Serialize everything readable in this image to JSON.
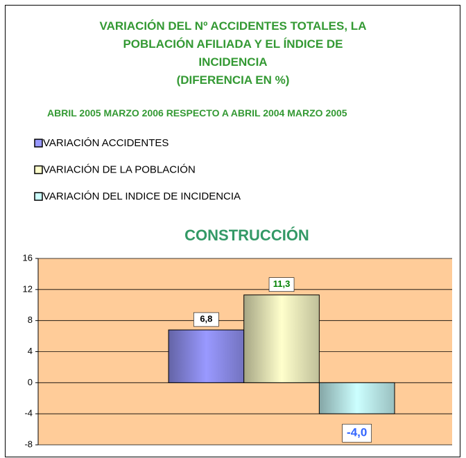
{
  "header": {
    "title_lines": [
      "VARIACIÓN DEL Nº ACCIDENTES TOTALES, LA",
      "POBLACIÓN AFILIADA Y EL ÍNDICE DE",
      "INCIDENCIA",
      "(DIFERENCIA EN %)"
    ],
    "subtitle": "ABRIL 2005 MARZO 2006 RESPECTO A ABRIL 2004 MARZO 2005"
  },
  "chart_data": {
    "type": "bar",
    "title": "CONSTRUCCIÓN",
    "categories": [
      null
    ],
    "series": [
      {
        "name": "VARIACIÓN ACCIDENTES",
        "color": "#9999ff",
        "label_color": "#000000",
        "values": [
          6.8
        ],
        "value_labels": [
          "6,8"
        ]
      },
      {
        "name": "VARIACIÓN DE LA POBLACIÓN",
        "color": "#ffffcc",
        "label_color": "#008000",
        "values": [
          11.3
        ],
        "value_labels": [
          "11,3"
        ]
      },
      {
        "name": "VARIACIÓN DEL INDICE DE INCIDENCIA",
        "color": "#ccffff",
        "label_color": "#3366ff",
        "values": [
          -4.0
        ],
        "value_labels": [
          "-4,0"
        ]
      }
    ],
    "ylim": [
      -8,
      16
    ],
    "yticks": [
      -8,
      -4,
      0,
      4,
      8,
      12,
      16
    ],
    "grid": true,
    "legend": "top-left",
    "plot_background": "#ffcc99"
  }
}
